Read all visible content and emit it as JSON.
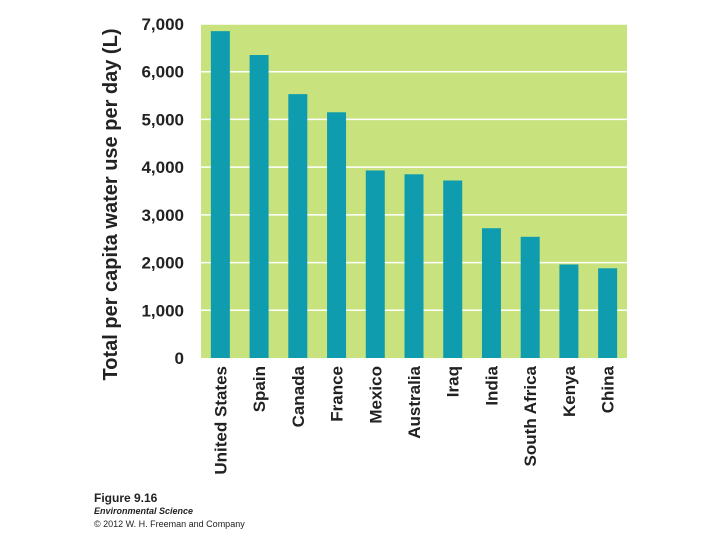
{
  "chart_data": {
    "type": "bar",
    "title": "",
    "xlabel": "",
    "ylabel": "Total per capita water use per day (L)",
    "categories": [
      "United States",
      "Spain",
      "Canada",
      "France",
      "Mexico",
      "Australia",
      "Iraq",
      "India",
      "South Africa",
      "Kenya",
      "China"
    ],
    "values": [
      6850,
      6350,
      5530,
      5150,
      3930,
      3850,
      3720,
      2720,
      2540,
      1960,
      1880
    ],
    "ylim": [
      0,
      7000
    ],
    "yticks": [
      0,
      1000,
      2000,
      3000,
      4000,
      5000,
      6000,
      7000
    ],
    "ytick_labels": [
      "0",
      "1,000",
      "2,000",
      "3,000",
      "4,000",
      "5,000",
      "6,000",
      "7,000"
    ],
    "grid": true,
    "colors": {
      "bar": "#0e9cae",
      "plot_background": "#c8e27e",
      "gridline": "#ffffff"
    }
  },
  "caption": {
    "figure": "Figure 9.16",
    "book": "Environmental Science",
    "copyright": "© 2012 W. H. Freeman and Company"
  }
}
